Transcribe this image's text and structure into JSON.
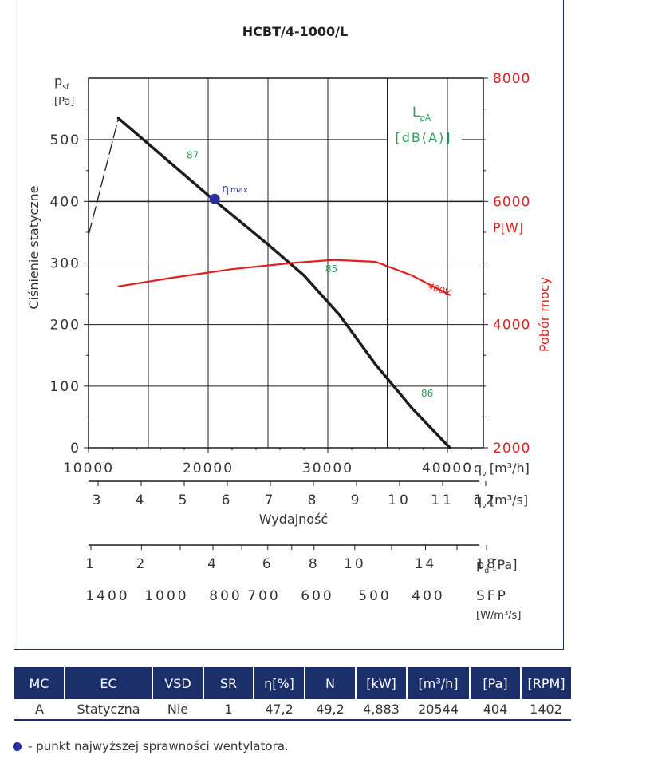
{
  "chart_data": {
    "type": "line",
    "title": "HCBT/4-1000/L",
    "ylabel": "Ciśnienie statyczne",
    "ylabel_top": "p",
    "ylabel_top_sub": "sf",
    "yunit": "[Pa]",
    "y2label": "Pobór mocy",
    "y2unit": "P[W]",
    "xlabel": "Wydajność",
    "lpa_label": "L",
    "lpa_sub": "pA",
    "lpa_unit": "[dB(A)]",
    "xlim": [
      10000,
      43000
    ],
    "ylim": [
      0,
      600
    ],
    "y2lim": [
      2000,
      8000
    ],
    "x_ticks": [
      "10000",
      "20000",
      "30000",
      "40000"
    ],
    "x_unit": "q",
    "x_unit_sub": "v",
    "x_unit_rest": "[m³/h]",
    "y_ticks": [
      "0",
      "100",
      "200",
      "300",
      "400",
      "500"
    ],
    "y2_ticks": [
      "2000",
      "4000",
      "6000",
      "8000"
    ],
    "axis_ms": {
      "labels": [
        "3",
        "4",
        "5",
        "6",
        "7",
        "8",
        "9",
        "10",
        "11",
        "12"
      ],
      "unit": "q",
      "unit_sub": "v",
      "unit_rest": "[m³/s]"
    },
    "axis_pd": {
      "labels": [
        "1",
        "2",
        "4",
        "6",
        "8",
        "10",
        "14",
        "18"
      ],
      "unit": "p",
      "unit_sub": "d",
      "unit_rest": "[Pa]"
    },
    "axis_sfp": {
      "labels": [
        "1400",
        "1000",
        "800",
        "700",
        "600",
        "500",
        "400"
      ],
      "unit": "SFP",
      "unit_rest": "[W/m³/s]"
    },
    "series": [
      {
        "role": "pressure",
        "color": "#1c1c1c",
        "points": [
          [
            12500,
            535
          ],
          [
            20000,
            410
          ],
          [
            25000,
            330
          ],
          [
            28000,
            280
          ],
          [
            31000,
            215
          ],
          [
            34000,
            135
          ],
          [
            37000,
            65
          ],
          [
            40200,
            0
          ]
        ]
      },
      {
        "role": "stall",
        "color": "#1c1c1c",
        "dashed": true,
        "points": [
          [
            10000,
            345
          ],
          [
            12500,
            535
          ]
        ]
      },
      {
        "name": "400V",
        "role": "power",
        "color": "#e02020",
        "axis": "y2",
        "points": [
          [
            12500,
            4620
          ],
          [
            17000,
            4760
          ],
          [
            22000,
            4900
          ],
          [
            27000,
            5000
          ],
          [
            30500,
            5050
          ],
          [
            34000,
            5020
          ],
          [
            37000,
            4800
          ],
          [
            40200,
            4480
          ]
        ]
      }
    ],
    "eta_point": {
      "x": 20544,
      "y": 404,
      "label": "η",
      "label_sub": "max",
      "color": "#2b2f9e"
    },
    "sound_labels": [
      {
        "text": "87",
        "x": 18200,
        "y": 470
      },
      {
        "text": "85",
        "x": 29800,
        "y": 285
      },
      {
        "text": "86",
        "x": 37800,
        "y": 83
      }
    ],
    "power_label": "400V"
  },
  "table": {
    "headers": [
      "MC",
      "EC",
      "VSD",
      "SR",
      "η[%]",
      "N",
      "[kW]",
      "[m³/h]",
      "[Pa]",
      "[RPM]"
    ],
    "row": [
      "A",
      "Statyczna",
      "Nie",
      "1",
      "47,2",
      "49,2",
      "4,883",
      "20544",
      "404",
      "1402"
    ]
  },
  "footnote": "- punkt najwyższej sprawności wentylatora."
}
